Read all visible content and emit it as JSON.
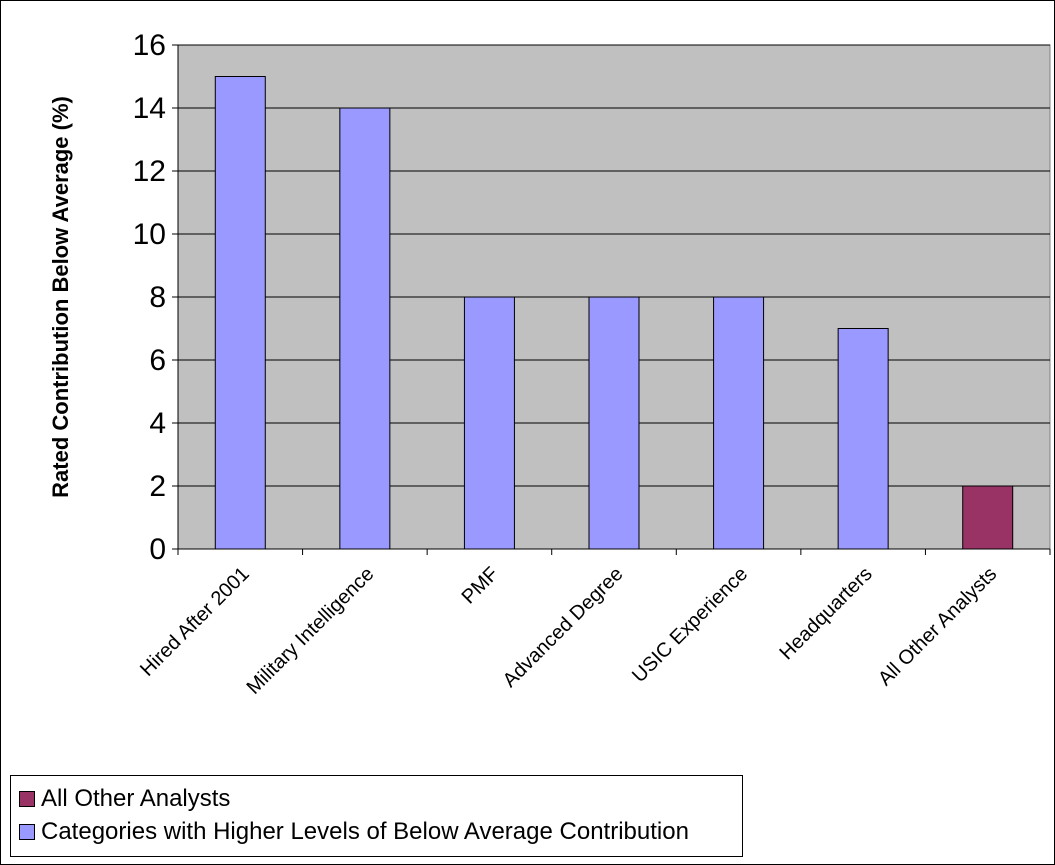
{
  "chart_data": {
    "type": "bar",
    "ylabel": "Rated Contribution Below Average (%)",
    "ylim": [
      0,
      16
    ],
    "yticks": [
      0,
      2,
      4,
      6,
      8,
      10,
      12,
      14,
      16
    ],
    "grid": true,
    "categories": [
      "Hired After 2001",
      "Military Intelligence",
      "PMF",
      "Advanced Degree",
      "USIC Experience",
      "Headquarters",
      "All Other Analysts"
    ],
    "series": [
      {
        "name": "All Other Analysts",
        "color": "#993366",
        "values": [
          null,
          null,
          null,
          null,
          null,
          null,
          2
        ]
      },
      {
        "name": "Categories with Higher Levels of Below Average Contribution",
        "color": "#9999ff",
        "values": [
          15,
          14,
          8,
          8,
          8,
          7,
          null
        ]
      }
    ],
    "legend_placement": "bottom-left",
    "plot_background": "#c0c0c0"
  }
}
